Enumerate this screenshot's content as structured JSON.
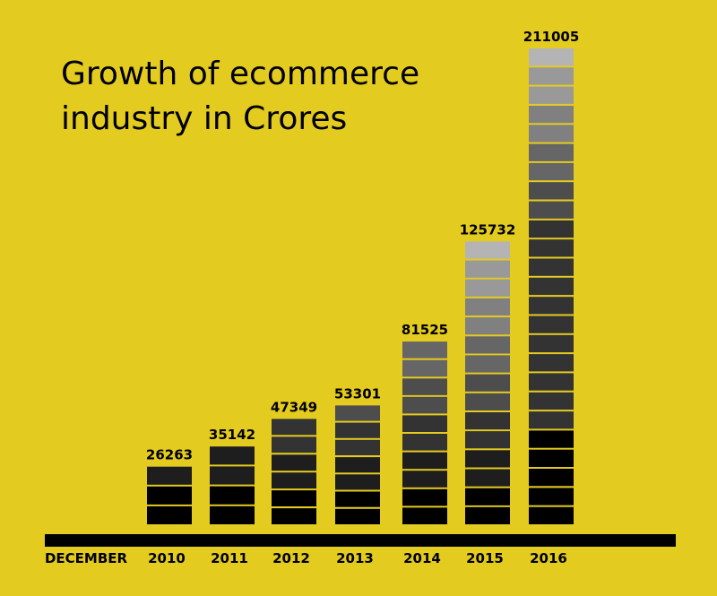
{
  "chart_data": {
    "type": "bar",
    "title": "Growth of ecommerce industry in Crores",
    "xlabel": "DECEMBER",
    "ylabel": "",
    "categories": [
      "2010",
      "2011",
      "2012",
      "2013",
      "2014",
      "2015",
      "2016"
    ],
    "values": [
      26263,
      35142,
      47349,
      53301,
      81525,
      125732,
      211005
    ],
    "data_labels": [
      "26263",
      "35142",
      "47349",
      "53301",
      "81525",
      "125732",
      "211005"
    ],
    "ylim": [
      0,
      211005
    ],
    "grid": false,
    "legend": "none",
    "colors": {
      "background": "#e4cb20",
      "axis": "#000000",
      "bar_dark": "#000000",
      "bar_light": "#b4b4b4"
    }
  }
}
